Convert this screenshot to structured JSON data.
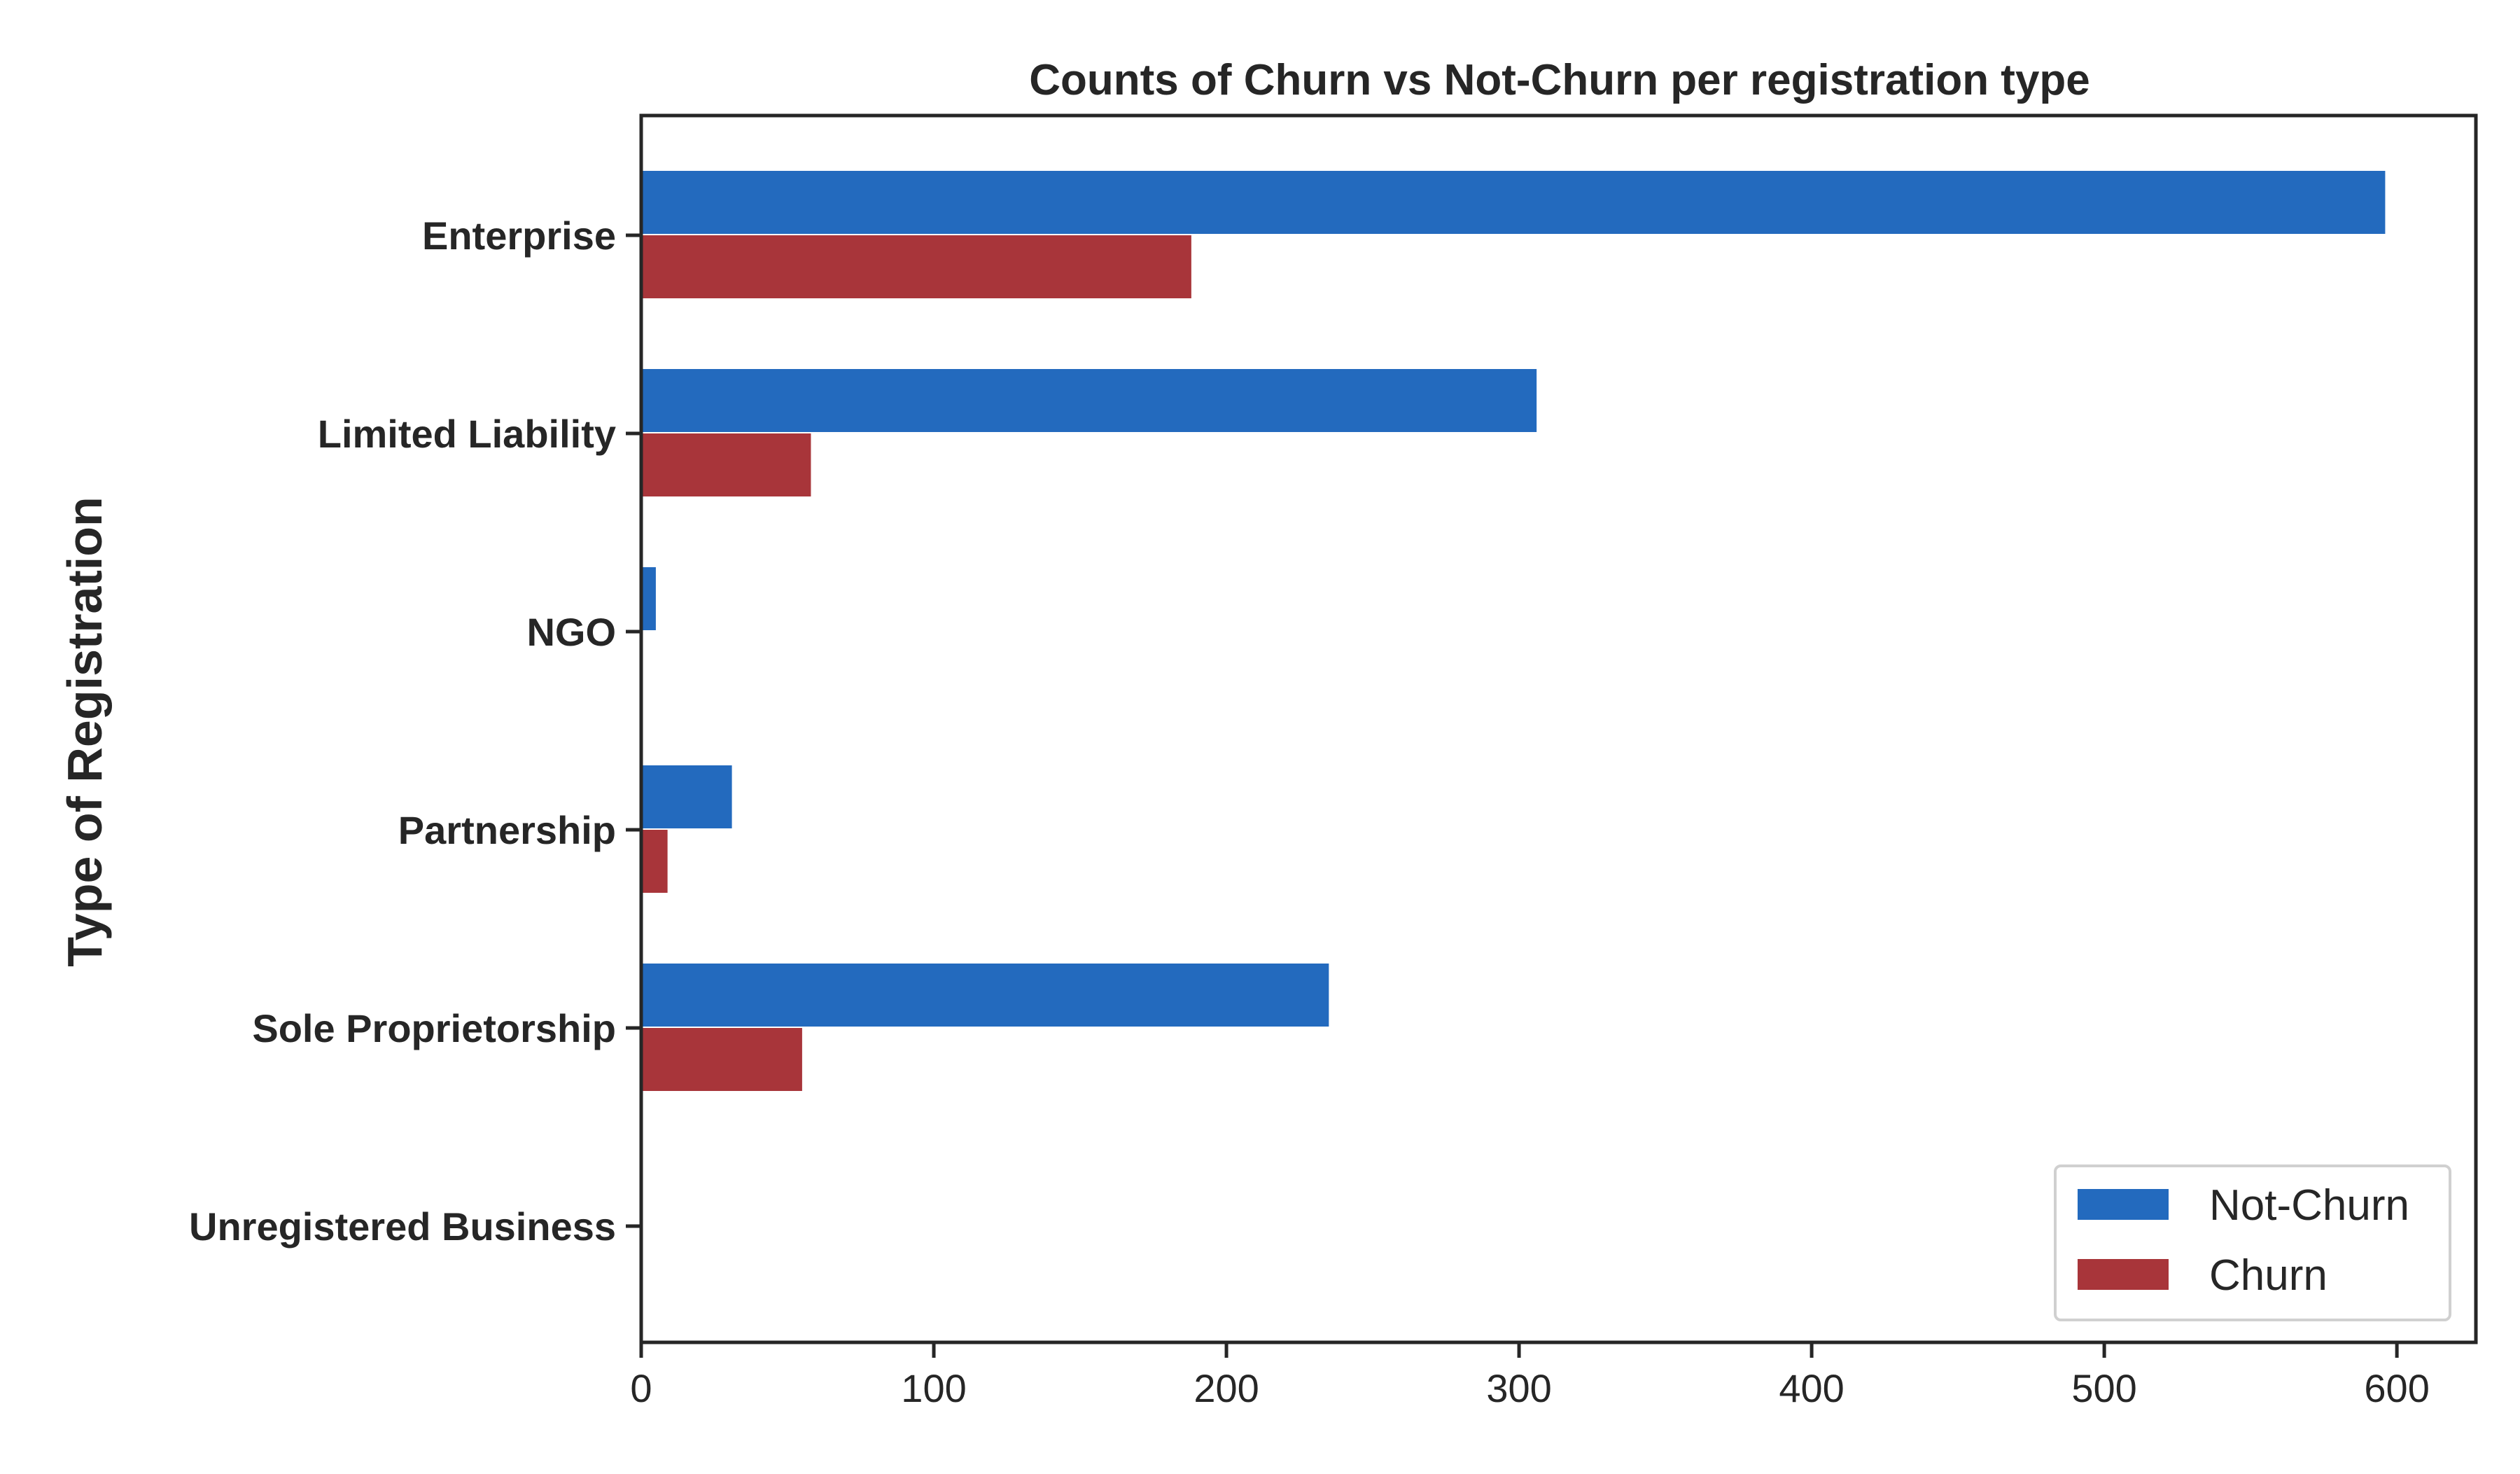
{
  "chart_data": {
    "type": "bar",
    "orientation": "horizontal",
    "title": "Counts of Churn vs Not-Churn per registration type",
    "xlabel": "",
    "ylabel": "Type of Registration",
    "categories": [
      "Enterprise",
      "Limited Liability",
      "NGO",
      "Partnership",
      "Sole Proprietorship",
      "Unregistered Business"
    ],
    "series": [
      {
        "name": "Not-Churn",
        "color": "#236ABE",
        "values": [
          596,
          306,
          5,
          31,
          235,
          0
        ]
      },
      {
        "name": "Churn",
        "color": "#A8353A",
        "values": [
          188,
          58,
          0,
          9,
          55,
          0
        ]
      }
    ],
    "xlim": [
      0,
      627
    ],
    "xticks": [
      0,
      100,
      200,
      300,
      400,
      500,
      600
    ],
    "grid": false,
    "legend_position": "lower-right"
  }
}
